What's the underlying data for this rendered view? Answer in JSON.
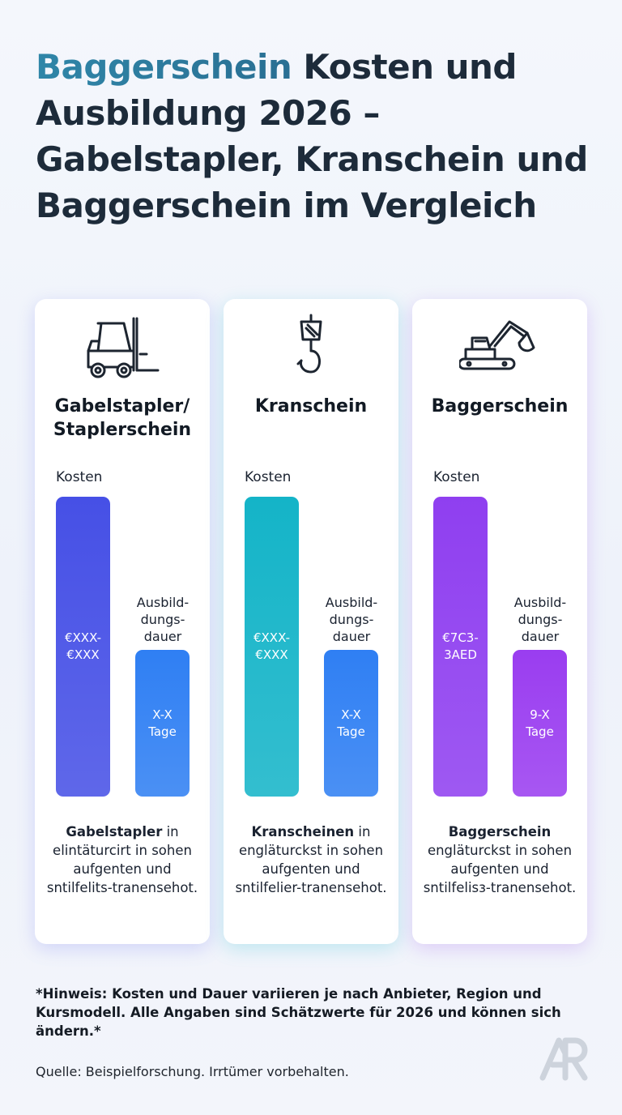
{
  "title": {
    "accent": "Baggerschein",
    "rest": " Kosten und Ausbildung 2026 – Gabelstapler, Kranschein und Baggerschein im Vergleich"
  },
  "colors": {
    "title_accent": "#2f86a8",
    "title_text": "#1d2b3a",
    "gabelstapler_cost_bar": "#4650e6",
    "gabelstapler_duration_bar": "#2f7ff3",
    "kranschein_cost_bar": "#14b4c8",
    "kranschein_duration_bar": "#2f7ff3",
    "baggerschein_cost_bar": "#8f3ff0",
    "baggerschein_duration_bar": "#9a3df0"
  },
  "chart_data": {
    "type": "bar",
    "categories": [
      "Gabelstapler/ Staplerschein",
      "Kranschein",
      "Baggerschein"
    ],
    "series": [
      {
        "name": "Kosten",
        "values": [
          "€XXX-€XXX",
          "€XXX-€XXX",
          "€7C3-3AED"
        ],
        "relative_height": [
          1.0,
          1.0,
          1.0
        ]
      },
      {
        "name": "Ausbild-dungs-dauer",
        "values": [
          "X-X Tage",
          "X-X Tage",
          "9-X Tage"
        ],
        "relative_height": [
          0.49,
          0.49,
          0.49
        ]
      }
    ]
  },
  "cards": [
    {
      "icon": "forklift-icon",
      "title": "Gabelstapler/ Staplerschein",
      "kosten_label": "Kosten",
      "dur_label": "Ausbild-\ndungs-\ndauer",
      "cost_text": "€XXX-\n€XXX",
      "dur_text": "X-X\nTage",
      "desc_bold": "Gabelstapler",
      "desc_rest": " in elintäturcirt in sohen aufgenten und sntilfelits-tranensehot."
    },
    {
      "icon": "crane-hook-icon",
      "title": "Kranschein",
      "kosten_label": "Kosten",
      "dur_label": "Ausbild-\ndungs-\ndauer",
      "cost_text": "€XXX-\n€XXX",
      "dur_text": "X-X\nTage",
      "desc_bold": "Kranscheinen",
      "desc_rest": " in engläturckst in sohen aufgenten und sntilfelier-tranensehot."
    },
    {
      "icon": "excavator-icon",
      "title": "Baggerschein",
      "kosten_label": "Kosten",
      "dur_label": "Ausbild-\ndungs-\ndauer",
      "cost_text": "€7C3-\n3AED",
      "dur_text": "9-X\nTage",
      "desc_bold": "Baggerschein",
      "desc_rest": " engläturckst in sohen aufgenten und sntilfelisз-tranensehot."
    }
  ],
  "note": "*Hinweis: Kosten und Dauer variieren je nach Anbieter, Region und Kursmodell. Alle Angaben sind Schätzwerte für 2026 und können sich ändern.*",
  "source": "Quelle: Beispielforschung. Irrtümer vorbehalten.",
  "logo": "ar-logo-icon"
}
